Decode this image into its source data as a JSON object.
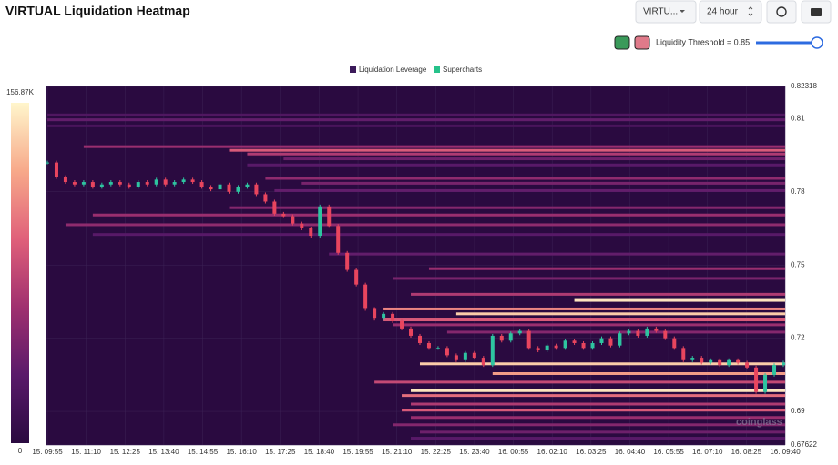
{
  "header": {
    "title": "VIRTUAL Liquidation Heatmap",
    "symbol": "VIRTU...",
    "range": "24 hour",
    "threshold": "Liquidity Threshold = 0.85"
  },
  "chart_data": {
    "type": "heatmap",
    "legend": [
      {
        "name": "Liquidation Leverage",
        "color": "#3b1a5a"
      },
      {
        "name": "Supercharts",
        "color": "#26c28a"
      }
    ],
    "watermark": "coinglass",
    "colorbar": {
      "lim": [
        0,
        156870
      ],
      "ticks": [
        {
          "value": 156870,
          "label": "156.87K"
        },
        0
      ],
      "colors": [
        "#2a0a40",
        "#5a1a6a",
        "#a0306f",
        "#e0607a",
        "#f7a98a",
        "#fff6cc"
      ]
    },
    "categories": [
      "15. 09:55",
      "15. 11:10",
      "15. 12:25",
      "15. 13:40",
      "15. 14:55",
      "15. 16:10",
      "15. 17:25",
      "15. 18:40",
      "15. 19:55",
      "15. 21:10",
      "15. 22:25",
      "15. 23:40",
      "16. 00:55",
      "16. 02:10",
      "16. 03:25",
      "16. 04:40",
      "16. 05:55",
      "16. 07:10",
      "16. 08:25",
      "16. 09:40"
    ],
    "ylim": [
      0.67622,
      0.82318
    ],
    "yticks": [
      0.82318,
      0.81,
      0.78,
      0.75,
      0.72,
      0.69,
      0.67622
    ],
    "candles": {
      "up": "#2ec4a0",
      "down": "#e8455e",
      "close": [
        0.792,
        0.786,
        0.784,
        0.783,
        0.784,
        0.782,
        0.783,
        0.784,
        0.783,
        0.782,
        0.784,
        0.783,
        0.785,
        0.783,
        0.784,
        0.785,
        0.784,
        0.782,
        0.781,
        0.783,
        0.78,
        0.782,
        0.783,
        0.779,
        0.776,
        0.771,
        0.77,
        0.767,
        0.765,
        0.762,
        0.774,
        0.766,
        0.755,
        0.748,
        0.742,
        0.732,
        0.728,
        0.73,
        0.727,
        0.724,
        0.721,
        0.718,
        0.716,
        0.716,
        0.713,
        0.711,
        0.714,
        0.712,
        0.709,
        0.721,
        0.719,
        0.722,
        0.723,
        0.716,
        0.715,
        0.717,
        0.716,
        0.719,
        0.718,
        0.716,
        0.718,
        0.72,
        0.717,
        0.722,
        0.723,
        0.721,
        0.724,
        0.723,
        0.72,
        0.716,
        0.711,
        0.712,
        0.71,
        0.711,
        0.709,
        0.711,
        0.71,
        0.708,
        0.698,
        0.705,
        0.709,
        0.71
      ]
    },
    "bands": {
      "price": [
        0.8115,
        0.8095,
        0.807,
        0.7985,
        0.797,
        0.7955,
        0.7935,
        0.791,
        0.7855,
        0.7835,
        0.7805,
        0.7735,
        0.7705,
        0.7665,
        0.7625,
        0.7545,
        0.7485,
        0.7445,
        0.738,
        0.7355,
        0.732,
        0.73,
        0.7275,
        0.7255,
        0.7225,
        0.7095,
        0.7055,
        0.702,
        0.6985,
        0.6965,
        0.693,
        0.6905,
        0.6875,
        0.6845,
        0.6815,
        0.679
      ],
      "start": [
        0,
        0,
        0,
        4,
        20,
        22,
        26,
        22,
        24,
        28,
        25,
        20,
        5,
        2,
        5,
        31,
        42,
        38,
        40,
        58,
        37,
        45,
        37,
        38,
        44,
        41,
        49,
        36,
        40,
        39,
        40,
        39,
        40,
        38,
        41,
        40
      ],
      "values": [
        25000,
        35000,
        20000,
        60000,
        90000,
        70000,
        40000,
        30000,
        55000,
        45000,
        35000,
        50000,
        60000,
        55000,
        30000,
        35000,
        60000,
        45000,
        70000,
        150000,
        110000,
        140000,
        90000,
        60000,
        50000,
        140000,
        120000,
        80000,
        150000,
        100000,
        70000,
        90000,
        60000,
        50000,
        40000,
        30000
      ]
    }
  }
}
